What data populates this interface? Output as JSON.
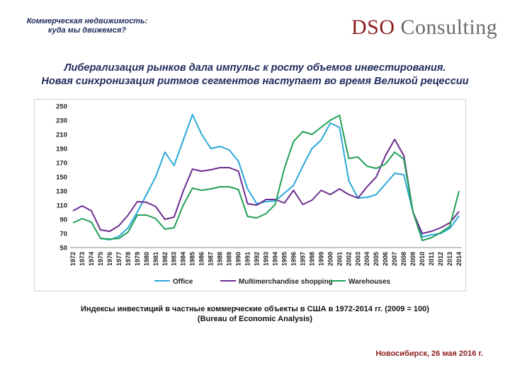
{
  "header": {
    "subtitle_line1": "Коммерческая недвижимость:",
    "subtitle_line2": "куда мы движемся?",
    "logo_part1": "DSO",
    "logo_part2": "Consulting"
  },
  "headline": {
    "line1": "Либерализация рынков дала импульс к росту объемов инвестирования.",
    "line2": "Новая синхронизация ритмов сегментов наступает во время Великой рецессии"
  },
  "caption": {
    "line1": "Индексы инвестиций в частные коммерческие объекты в США в 1972-2014 гг. (2009 = 100)",
    "line2": "(Bureau of Economic Analysis)"
  },
  "footer": "Новосибирск, 26 мая 2016 г.",
  "colors": {
    "office": "#2aa8d8",
    "multimerchandise": "#6b2d8f",
    "warehouses": "#22a055",
    "headline": "#1f2a5c",
    "accent": "#8b1d1d"
  },
  "chart_data": {
    "type": "line",
    "ylim": [
      50,
      250
    ],
    "yticks": [
      50,
      70,
      90,
      110,
      130,
      150,
      170,
      190,
      210,
      230,
      250
    ],
    "grid": false,
    "legend": "bottom",
    "x": [
      "1972",
      "1973",
      "1974",
      "1975",
      "1976",
      "1977",
      "1978",
      "1979",
      "1980",
      "1981",
      "1982",
      "1983",
      "1984",
      "1985",
      "1986",
      "1987",
      "1988",
      "1989",
      "1990",
      "1991",
      "1992",
      "1993",
      "1994",
      "1995",
      "1996",
      "1997",
      "1998",
      "1999",
      "2000",
      "2001",
      "2002",
      "2003",
      "2004",
      "2005",
      "2006",
      "2007",
      "2008",
      "2009",
      "2010",
      "2011",
      "2012",
      "2013",
      "2014"
    ],
    "series": [
      {
        "name": "Office",
        "values": [
          null,
          null,
          null,
          63,
          61,
          66,
          78,
          100,
          125,
          150,
          185,
          166,
          202,
          238,
          210,
          190,
          193,
          188,
          172,
          133,
          112,
          115,
          116,
          127,
          138,
          165,
          190,
          202,
          226,
          220,
          145,
          120,
          121,
          125,
          140,
          155,
          153,
          100,
          65,
          68,
          70,
          77,
          95
        ]
      },
      {
        "name": "Multimerchandise shopping",
        "values": [
          102,
          109,
          102,
          75,
          73,
          81,
          96,
          115,
          114,
          108,
          90,
          93,
          130,
          161,
          158,
          160,
          163,
          163,
          158,
          112,
          110,
          118,
          118,
          113,
          131,
          111,
          117,
          131,
          125,
          133,
          125,
          120,
          136,
          150,
          180,
          203,
          180,
          100,
          70,
          73,
          78,
          85,
          101
        ]
      },
      {
        "name": "Warehouses",
        "values": [
          85,
          91,
          86,
          63,
          62,
          63,
          72,
          96,
          96,
          91,
          76,
          78,
          110,
          134,
          131,
          133,
          136,
          136,
          132,
          94,
          92,
          98,
          111,
          162,
          200,
          214,
          210,
          220,
          230,
          237,
          176,
          178,
          165,
          162,
          168,
          185,
          175,
          100,
          60,
          64,
          71,
          80,
          130
        ]
      }
    ]
  }
}
